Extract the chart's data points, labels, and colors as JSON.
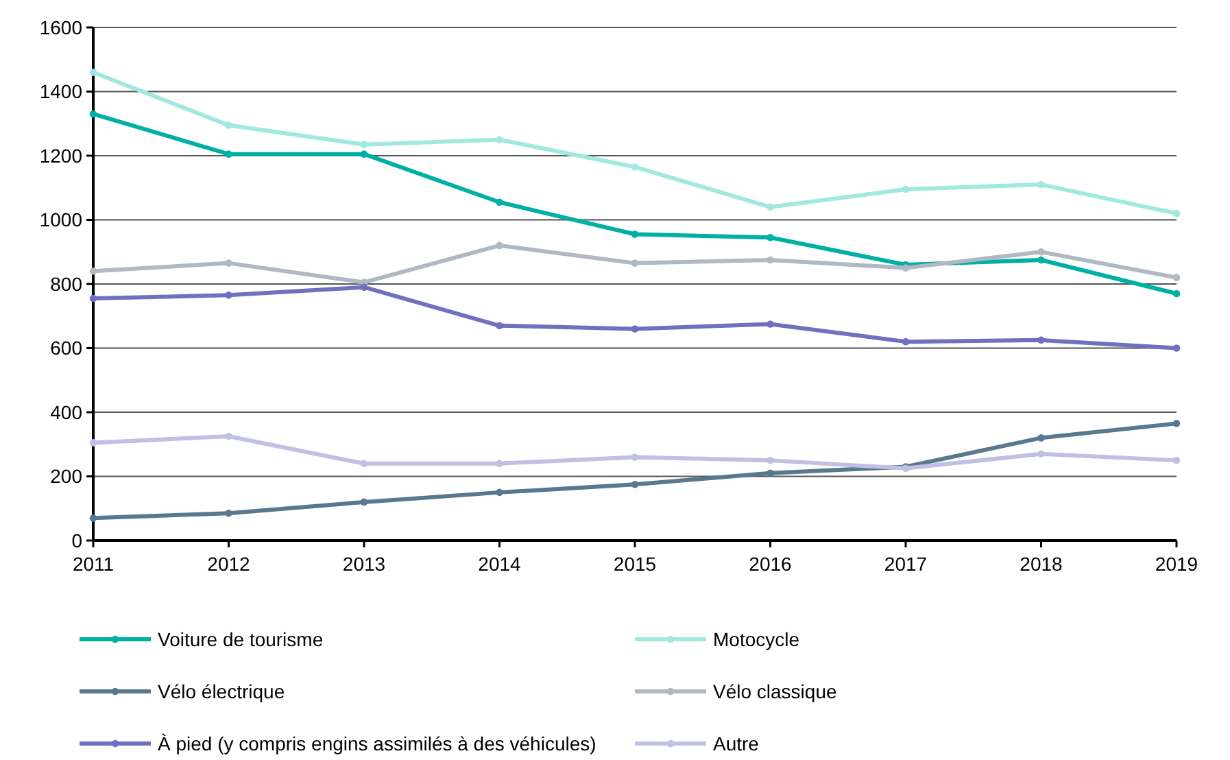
{
  "chart_data": {
    "type": "line",
    "x": [
      2011,
      2012,
      2013,
      2014,
      2015,
      2016,
      2017,
      2018,
      2019
    ],
    "xlim": [
      2011,
      2019
    ],
    "xticks": [
      2011,
      2012,
      2013,
      2014,
      2015,
      2016,
      2017,
      2018,
      2019
    ],
    "ylim": [
      0,
      1600
    ],
    "yticks": [
      0,
      200,
      400,
      600,
      800,
      1000,
      1200,
      1400,
      1600
    ],
    "grid": "y",
    "legend": "bottom",
    "marker": "circle",
    "line_style": "solid",
    "series": [
      {
        "name": "Voiture de tourisme",
        "color": "#00b0a4",
        "values": [
          1330,
          1205,
          1205,
          1055,
          955,
          945,
          860,
          875,
          770
        ]
      },
      {
        "name": "Motocycle",
        "color": "#a0e8e0",
        "values": [
          1460,
          1295,
          1235,
          1250,
          1165,
          1040,
          1095,
          1110,
          1020
        ]
      },
      {
        "name": "Vélo électrique",
        "color": "#587890",
        "values": [
          70,
          85,
          120,
          150,
          175,
          210,
          230,
          320,
          365
        ]
      },
      {
        "name": "Vélo classique",
        "color": "#b0b8c4",
        "values": [
          840,
          865,
          805,
          920,
          865,
          875,
          850,
          900,
          820
        ]
      },
      {
        "name": "À pied (y compris engins assimilés à des véhicules)",
        "color": "#7070c0",
        "values": [
          755,
          765,
          790,
          670,
          660,
          675,
          620,
          625,
          600
        ]
      },
      {
        "name": "Autre",
        "color": "#c0c0e4",
        "values": [
          305,
          325,
          240,
          240,
          260,
          250,
          225,
          270,
          250
        ]
      }
    ]
  }
}
